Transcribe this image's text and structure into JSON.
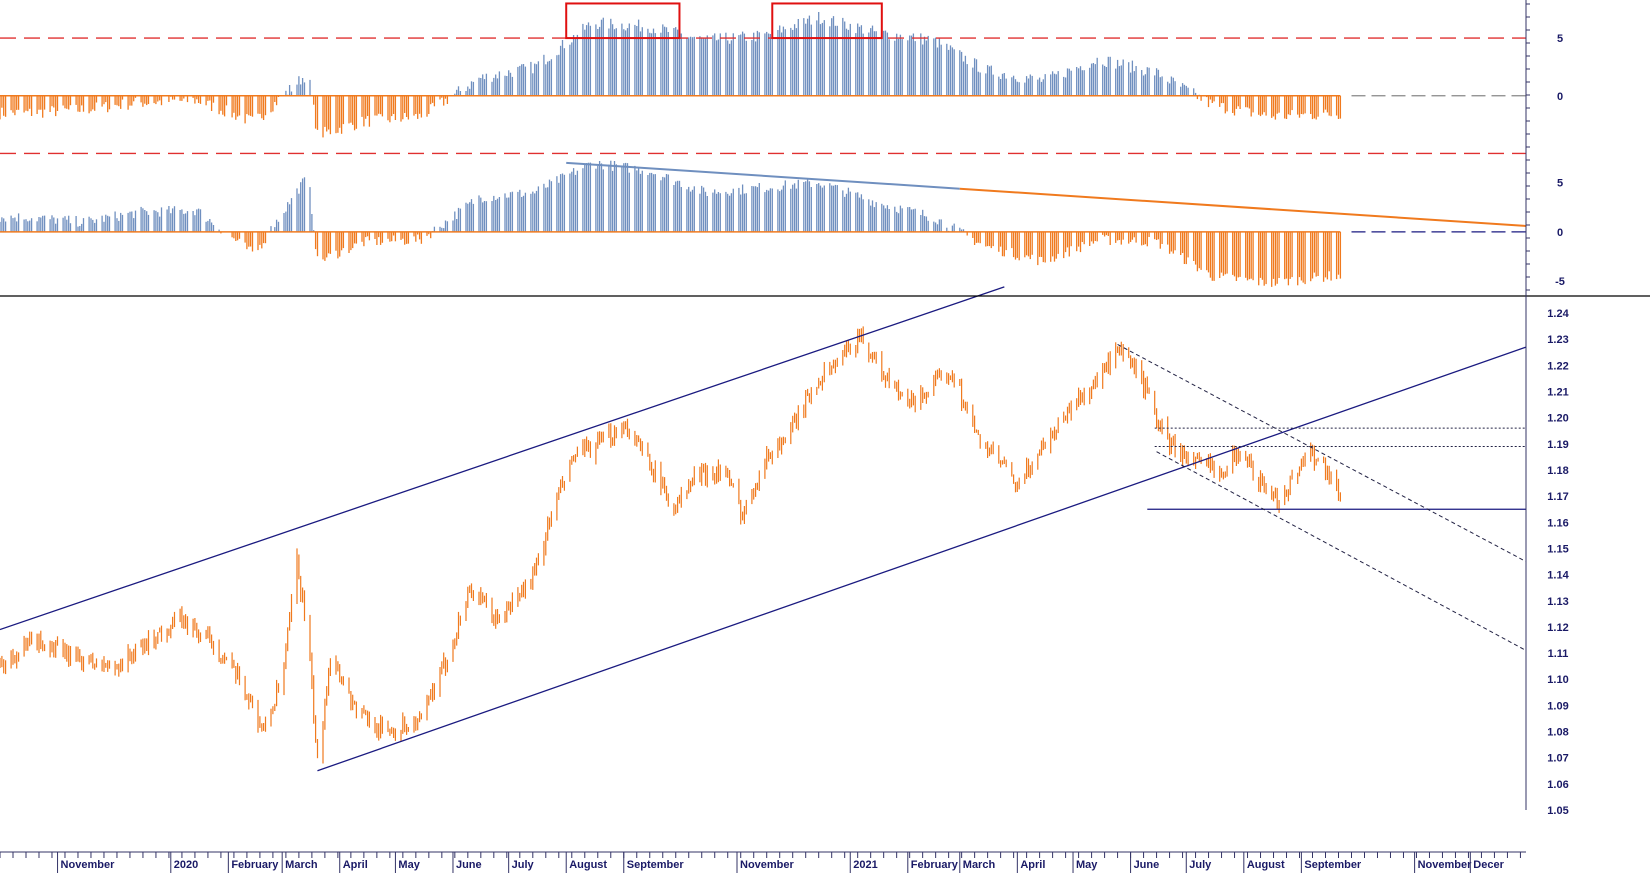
{
  "colors": {
    "price": "#f07a1e",
    "positive_bar": "#6f8fbf",
    "negative_bar": "#f07a1e",
    "trendline": "#1a1a80",
    "axis_text": "#1a1a66",
    "level_line": "#e03030",
    "box": "#e01010"
  },
  "chart_data": [
    {
      "type": "bar",
      "panel": "oscillator-top",
      "y_ticks": [
        5,
        0
      ],
      "y_tick_labels": [
        "5",
        "0"
      ],
      "ylim": [
        -4.7,
        8.3
      ],
      "reference_levels": [
        5,
        -5
      ],
      "approx_monthly_values": [
        {
          "x": "2019-10",
          "y": -1.5
        },
        {
          "x": "2019-11",
          "y": -1.2
        },
        {
          "x": "2019-12",
          "y": -0.6
        },
        {
          "x": "2020-01",
          "y": -0.4
        },
        {
          "x": "2020-02",
          "y": -2.3
        },
        {
          "x": "2020-03",
          "y": 2.0
        },
        {
          "x": "2020-03-20",
          "y": -3.4
        },
        {
          "x": "2020-04",
          "y": -2.2
        },
        {
          "x": "2020-05",
          "y": -1.8
        },
        {
          "x": "2020-06",
          "y": 1.5
        },
        {
          "x": "2020-07",
          "y": 2.5
        },
        {
          "x": "2020-08",
          "y": 6.3
        },
        {
          "x": "2020-09",
          "y": 6.0
        },
        {
          "x": "2020-10",
          "y": 4.8
        },
        {
          "x": "2020-11",
          "y": 5.2
        },
        {
          "x": "2020-12",
          "y": 6.8
        },
        {
          "x": "2021-01",
          "y": 5.5
        },
        {
          "x": "2021-02",
          "y": 4.8
        },
        {
          "x": "2021-03",
          "y": 2.2
        },
        {
          "x": "2021-04",
          "y": 1.3
        },
        {
          "x": "2021-05",
          "y": 3.2
        },
        {
          "x": "2021-06",
          "y": 2.0
        },
        {
          "x": "2021-07",
          "y": -0.8
        },
        {
          "x": "2021-08",
          "y": -1.8
        },
        {
          "x": "2021-09",
          "y": -1.6
        }
      ],
      "highlight_boxes": [
        {
          "from": "2020-08-01",
          "to": "2020-10-01"
        },
        {
          "from": "2020-11-20",
          "to": "2021-01-18"
        }
      ]
    },
    {
      "type": "bar",
      "panel": "oscillator-middle",
      "y_ticks": [
        5,
        0,
        -5
      ],
      "y_tick_labels": [
        "5",
        "0",
        "-5"
      ],
      "ylim": [
        -6.5,
        8.3
      ],
      "approx_monthly_values": [
        {
          "x": "2019-10",
          "y": 1.5
        },
        {
          "x": "2019-11",
          "y": 1.0
        },
        {
          "x": "2019-12",
          "y": 2.0
        },
        {
          "x": "2020-01",
          "y": 2.2
        },
        {
          "x": "2020-02",
          "y": -2.3
        },
        {
          "x": "2020-03",
          "y": 5.8
        },
        {
          "x": "2020-03-20",
          "y": -3.0
        },
        {
          "x": "2020-04",
          "y": -1.0
        },
        {
          "x": "2020-05",
          "y": -0.8
        },
        {
          "x": "2020-06",
          "y": 3.5
        },
        {
          "x": "2020-07",
          "y": 4.0
        },
        {
          "x": "2020-08",
          "y": 7.0
        },
        {
          "x": "2020-09",
          "y": 6.2
        },
        {
          "x": "2020-10",
          "y": 4.0
        },
        {
          "x": "2020-11",
          "y": 4.5
        },
        {
          "x": "2020-12",
          "y": 5.0
        },
        {
          "x": "2021-01",
          "y": 3.0
        },
        {
          "x": "2021-02",
          "y": 1.5
        },
        {
          "x": "2021-03",
          "y": -1.5
        },
        {
          "x": "2021-04",
          "y": -3.0
        },
        {
          "x": "2021-05",
          "y": -0.8
        },
        {
          "x": "2021-06",
          "y": -1.0
        },
        {
          "x": "2021-07",
          "y": -4.5
        },
        {
          "x": "2021-08",
          "y": -5.2
        },
        {
          "x": "2021-09",
          "y": -4.5
        }
      ],
      "trendline": {
        "from": {
          "x": "2020-08-01",
          "y": 7.0
        },
        "to": {
          "x": "2021-12-31",
          "y": 0.6
        }
      }
    },
    {
      "type": "line",
      "panel": "price",
      "y_ticks": [
        1.24,
        1.23,
        1.22,
        1.21,
        1.2,
        1.19,
        1.18,
        1.17,
        1.16,
        1.15,
        1.14,
        1.13,
        1.12,
        1.11,
        1.1,
        1.09,
        1.08,
        1.07,
        1.06,
        1.05
      ],
      "y_tick_labels": [
        "1.24",
        "1.23",
        "1.22",
        "1.21",
        "1.20",
        "1.19",
        "1.18",
        "1.17",
        "1.16",
        "1.15",
        "1.14",
        "1.13",
        "1.12",
        "1.11",
        "1.10",
        "1.09",
        "1.08",
        "1.07",
        "1.06",
        "1.05"
      ],
      "ylim": [
        1.05,
        1.245
      ],
      "xlim": [
        "2019-10-01",
        "2021-12-31"
      ],
      "series_points": [
        {
          "x": "2019-10-01",
          "y": 1.105
        },
        {
          "x": "2019-10-20",
          "y": 1.115
        },
        {
          "x": "2019-11-10",
          "y": 1.108
        },
        {
          "x": "2019-12-01",
          "y": 1.104
        },
        {
          "x": "2019-12-25",
          "y": 1.117
        },
        {
          "x": "2020-01-05",
          "y": 1.123
        },
        {
          "x": "2020-01-25",
          "y": 1.113
        },
        {
          "x": "2020-02-10",
          "y": 1.096
        },
        {
          "x": "2020-02-20",
          "y": 1.08
        },
        {
          "x": "2020-03-01",
          "y": 1.1
        },
        {
          "x": "2020-03-09",
          "y": 1.145
        },
        {
          "x": "2020-03-15",
          "y": 1.115
        },
        {
          "x": "2020-03-20",
          "y": 1.067
        },
        {
          "x": "2020-03-27",
          "y": 1.11
        },
        {
          "x": "2020-04-10",
          "y": 1.088
        },
        {
          "x": "2020-04-25",
          "y": 1.08
        },
        {
          "x": "2020-05-15",
          "y": 1.084
        },
        {
          "x": "2020-05-30",
          "y": 1.11
        },
        {
          "x": "2020-06-10",
          "y": 1.135
        },
        {
          "x": "2020-06-25",
          "y": 1.122
        },
        {
          "x": "2020-07-15",
          "y": 1.14
        },
        {
          "x": "2020-07-25",
          "y": 1.165
        },
        {
          "x": "2020-08-05",
          "y": 1.185
        },
        {
          "x": "2020-08-20",
          "y": 1.19
        },
        {
          "x": "2020-09-01",
          "y": 1.198
        },
        {
          "x": "2020-09-15",
          "y": 1.183
        },
        {
          "x": "2020-09-28",
          "y": 1.165
        },
        {
          "x": "2020-10-10",
          "y": 1.178
        },
        {
          "x": "2020-10-25",
          "y": 1.18
        },
        {
          "x": "2020-11-04",
          "y": 1.163
        },
        {
          "x": "2020-11-15",
          "y": 1.183
        },
        {
          "x": "2020-11-30",
          "y": 1.195
        },
        {
          "x": "2020-12-15",
          "y": 1.215
        },
        {
          "x": "2020-12-30",
          "y": 1.225
        },
        {
          "x": "2021-01-06",
          "y": 1.232
        },
        {
          "x": "2021-01-20",
          "y": 1.215
        },
        {
          "x": "2021-02-01",
          "y": 1.205
        },
        {
          "x": "2021-02-15",
          "y": 1.212
        },
        {
          "x": "2021-02-25",
          "y": 1.218
        },
        {
          "x": "2021-03-10",
          "y": 1.193
        },
        {
          "x": "2021-03-25",
          "y": 1.181
        },
        {
          "x": "2021-04-01",
          "y": 1.173
        },
        {
          "x": "2021-04-15",
          "y": 1.19
        },
        {
          "x": "2021-05-01",
          "y": 1.205
        },
        {
          "x": "2021-05-15",
          "y": 1.215
        },
        {
          "x": "2021-05-25",
          "y": 1.225
        },
        {
          "x": "2021-06-05",
          "y": 1.218
        },
        {
          "x": "2021-06-16",
          "y": 1.198
        },
        {
          "x": "2021-06-22",
          "y": 1.19
        },
        {
          "x": "2021-07-05",
          "y": 1.183
        },
        {
          "x": "2021-07-20",
          "y": 1.18
        },
        {
          "x": "2021-07-30",
          "y": 1.188
        },
        {
          "x": "2021-08-10",
          "y": 1.175
        },
        {
          "x": "2021-08-20",
          "y": 1.168
        },
        {
          "x": "2021-08-30",
          "y": 1.18
        },
        {
          "x": "2021-09-05",
          "y": 1.188
        },
        {
          "x": "2021-09-15",
          "y": 1.18
        },
        {
          "x": "2021-09-22",
          "y": 1.17
        }
      ],
      "trendlines": [
        {
          "style": "solid",
          "from": {
            "x": "2019-10-01",
            "y": 1.119
          },
          "to": {
            "x": "2021-03-25",
            "y": 1.25
          }
        },
        {
          "style": "solid",
          "from": {
            "x": "2020-03-20",
            "y": 1.065
          },
          "to": {
            "x": "2021-12-31",
            "y": 1.227
          }
        },
        {
          "style": "solid",
          "from": {
            "x": "2021-06-10",
            "y": 1.165
          },
          "to": {
            "x": "2021-12-31",
            "y": 1.165
          }
        },
        {
          "style": "dashed",
          "from": {
            "x": "2021-05-25",
            "y": 1.228
          },
          "to": {
            "x": "2021-12-31",
            "y": 1.145
          }
        },
        {
          "style": "dashed",
          "from": {
            "x": "2021-06-15",
            "y": 1.187
          },
          "to": {
            "x": "2021-12-31",
            "y": 1.111
          }
        },
        {
          "style": "dotted",
          "from": {
            "x": "2021-06-14",
            "y": 1.196
          },
          "to": {
            "x": "2021-12-31",
            "y": 1.196
          }
        },
        {
          "style": "dotted",
          "from": {
            "x": "2021-06-14",
            "y": 1.189
          },
          "to": {
            "x": "2021-12-31",
            "y": 1.189
          }
        }
      ],
      "x_tick_labels": [
        {
          "x": "2019-11-01",
          "label": "November"
        },
        {
          "x": "2020-01-01",
          "label": "2020"
        },
        {
          "x": "2020-02-01",
          "label": "February"
        },
        {
          "x": "2020-03-01",
          "label": "March"
        },
        {
          "x": "2020-04-01",
          "label": "April"
        },
        {
          "x": "2020-05-01",
          "label": "May"
        },
        {
          "x": "2020-06-01",
          "label": "June"
        },
        {
          "x": "2020-07-01",
          "label": "July"
        },
        {
          "x": "2020-08-01",
          "label": "August"
        },
        {
          "x": "2020-09-01",
          "label": "September"
        },
        {
          "x": "2020-11-01",
          "label": "November"
        },
        {
          "x": "2021-01-01",
          "label": "2021"
        },
        {
          "x": "2021-02-01",
          "label": "February"
        },
        {
          "x": "2021-03-01",
          "label": "March"
        },
        {
          "x": "2021-04-01",
          "label": "April"
        },
        {
          "x": "2021-05-01",
          "label": "May"
        },
        {
          "x": "2021-06-01",
          "label": "June"
        },
        {
          "x": "2021-07-01",
          "label": "July"
        },
        {
          "x": "2021-08-01",
          "label": "August"
        },
        {
          "x": "2021-09-01",
          "label": "September"
        },
        {
          "x": "2021-11-01",
          "label": "November"
        },
        {
          "x": "2021-12-01",
          "label": "Decer"
        }
      ]
    }
  ]
}
